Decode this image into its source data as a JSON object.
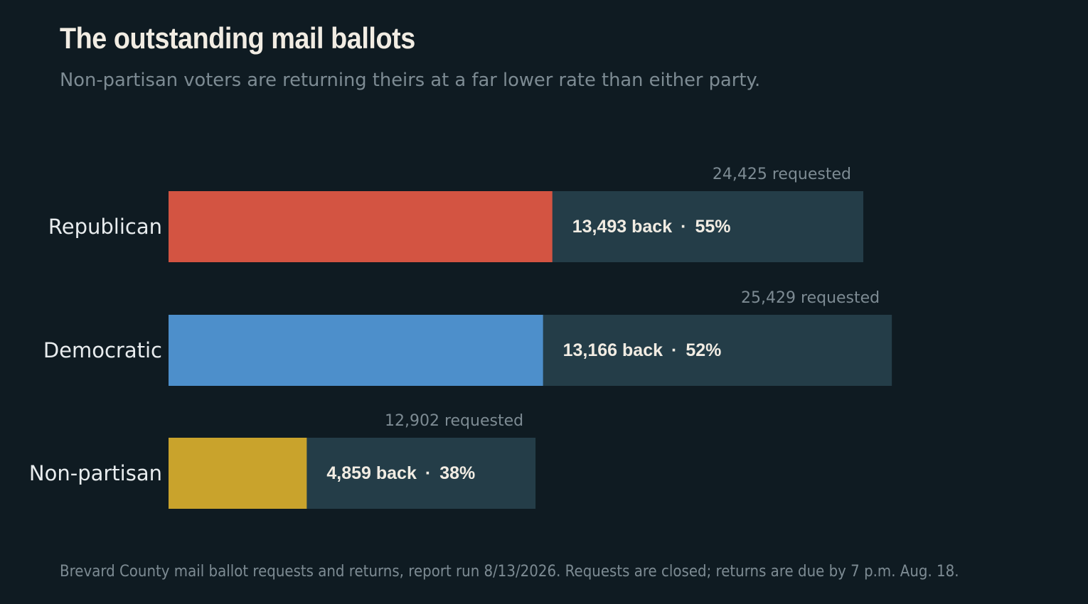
{
  "header": {
    "title": "The outstanding mail ballots",
    "subtitle": "Non-partisan voters are returning theirs at a far lower rate than either party."
  },
  "footer": {
    "note": "Brevard County mail ballot requests and returns, report run 8/13/2026. Requests are closed; returns are due by 7 p.m. Aug. 18."
  },
  "colors": {
    "background": "#0f1b22",
    "remainder": "#243d48",
    "Republican": "#d35442",
    "Democratic": "#4d8fcb",
    "Non-partisan": "#c9a32c"
  },
  "chart_data": {
    "type": "bar",
    "orientation": "horizontal",
    "stacked": true,
    "categories": [
      "Republican",
      "Democratic",
      "Non-partisan"
    ],
    "series": [
      {
        "name": "back",
        "values": [
          13493,
          13166,
          4859
        ]
      },
      {
        "name": "requested",
        "values": [
          24425,
          25429,
          12902
        ]
      }
    ],
    "percent_back": [
      55,
      52,
      38
    ],
    "requested_labels": [
      "24,425 requested",
      "25,429 requested",
      "12,902 requested"
    ],
    "back_labels": [
      "13,493 back",
      "13,166 back",
      "4,859 back"
    ],
    "percent_labels": [
      "55%",
      "52%",
      "38%"
    ],
    "separator": "·",
    "grid": false,
    "legend": "none"
  }
}
